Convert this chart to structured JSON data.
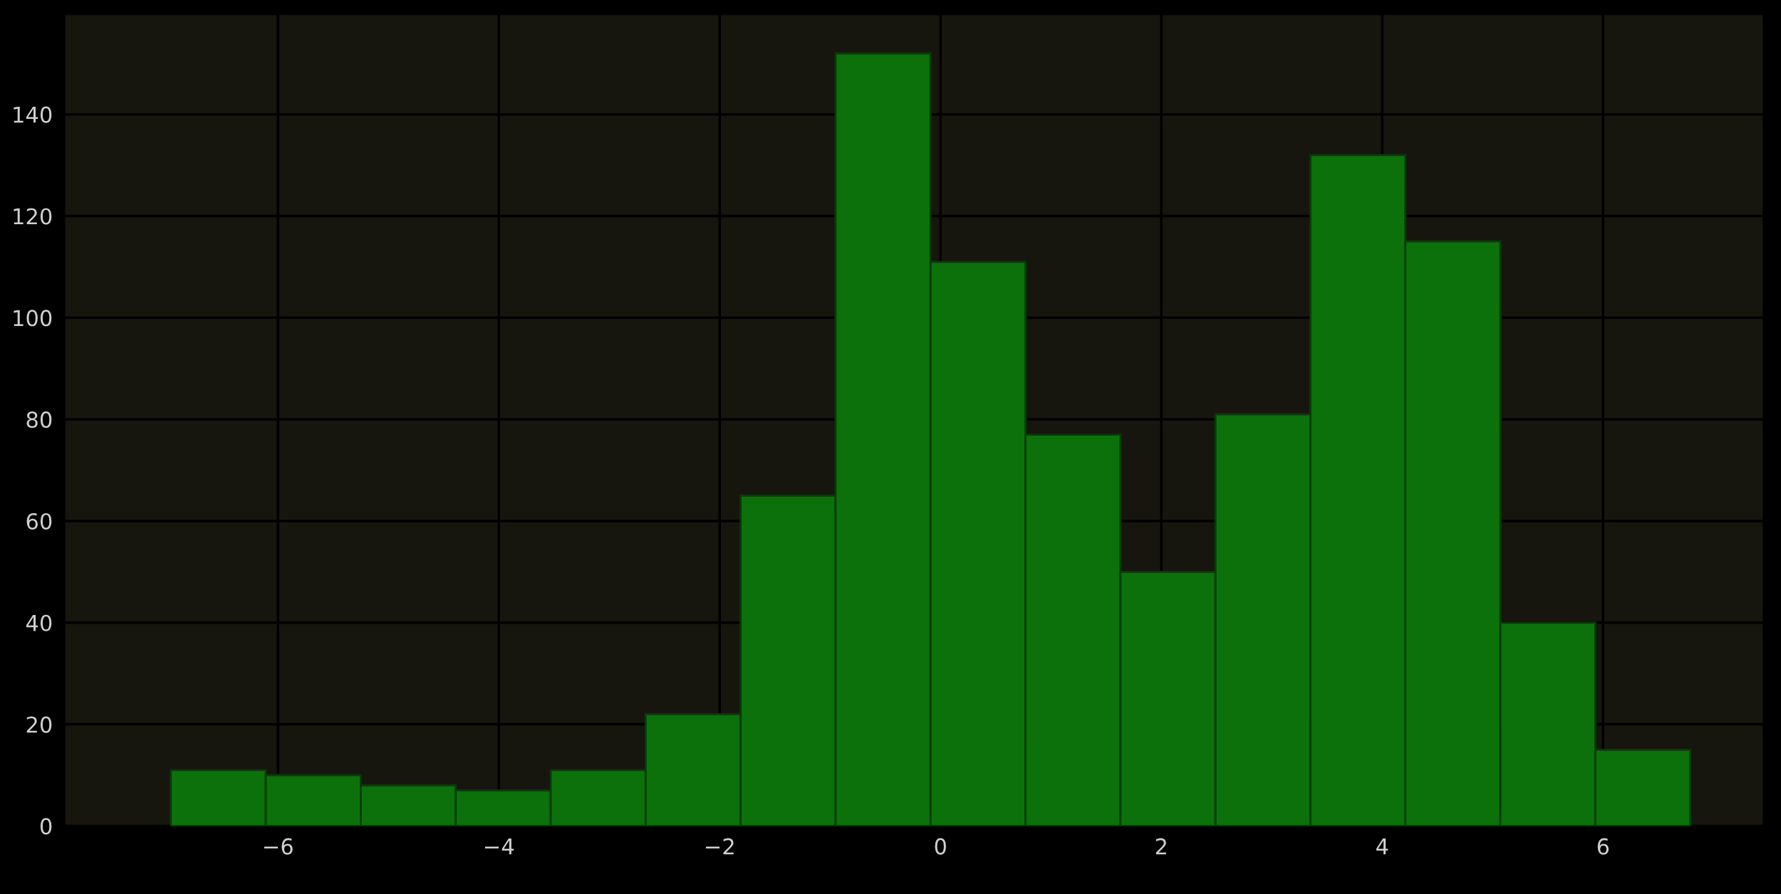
{
  "chart_data": {
    "type": "histogram",
    "bins": [
      -6.97,
      -6.11,
      -5.25,
      -4.39,
      -3.53,
      -2.67,
      -1.81,
      -0.95,
      -0.09,
      0.77,
      1.63,
      2.49,
      3.35,
      4.21,
      5.07,
      5.93,
      6.79
    ],
    "values": [
      11,
      10,
      8,
      7,
      11,
      22,
      65,
      152,
      111,
      77,
      50,
      81,
      132,
      115,
      40,
      15
    ],
    "color": "#0c710a",
    "xlim": [
      -7.93,
      7.45
    ],
    "ylim": [
      0,
      159.6
    ],
    "xticks": [
      {
        "value": -6,
        "label": "−6"
      },
      {
        "value": -4,
        "label": "−4"
      },
      {
        "value": -2,
        "label": "−2"
      },
      0,
      2,
      4,
      6
    ],
    "yticks": [
      0,
      20,
      40,
      60,
      80,
      100,
      120,
      140
    ],
    "grid": true
  }
}
